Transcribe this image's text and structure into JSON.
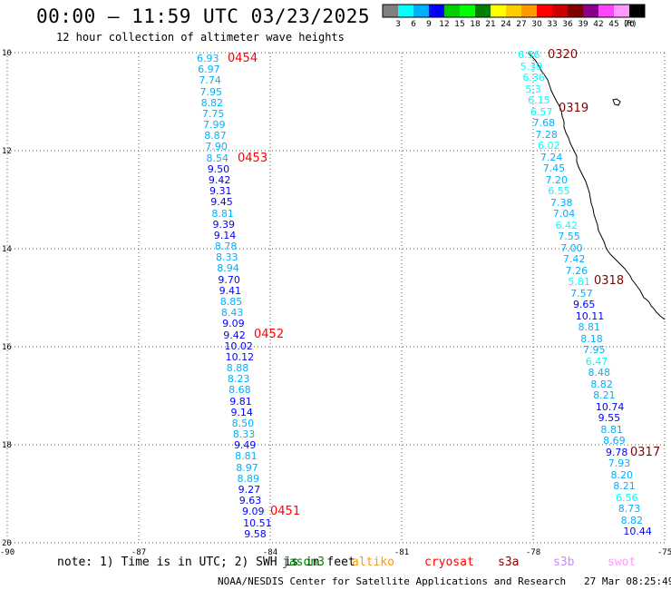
{
  "header": {
    "title": "00:00 – 11:59 UTC 03/23/2025",
    "subtitle": "12 hour collection of altimeter wave heights"
  },
  "legend": {
    "ticks": [
      "3",
      "6",
      "9",
      "12",
      "15",
      "18",
      "21",
      "24",
      "27",
      "30",
      "33",
      "36",
      "39",
      "42",
      "45",
      "70"
    ],
    "unit": "(ft)",
    "colors": [
      "#808080",
      "#00ffff",
      "#00b0ff",
      "#0000ff",
      "#00d000",
      "#00ff00",
      "#008000",
      "#ffff00",
      "#ffcc00",
      "#ff9900",
      "#ff0000",
      "#cc0000",
      "#800000",
      "#8b008b",
      "#ff44ff",
      "#ff99ff",
      "#000000"
    ]
  },
  "axes": {
    "lon_labels": [
      "-90",
      "-87",
      "-84",
      "-81",
      "-78",
      "-75"
    ],
    "lat_labels": [
      "10",
      "12",
      "14",
      "16",
      "18",
      "20"
    ],
    "lon_range": [
      -90,
      -75
    ],
    "lat_range": [
      10,
      20
    ]
  },
  "tracks": [
    {
      "points": [
        {
          "v": "6.93",
          "c": "#00b0ff"
        },
        {
          "v": "6.97",
          "c": "#00b0ff"
        },
        {
          "v": "7.74",
          "c": "#00b0ff"
        },
        {
          "v": "7.95",
          "c": "#00b0ff"
        },
        {
          "v": "8.82",
          "c": "#00b0ff"
        },
        {
          "v": "7.75",
          "c": "#00b0ff"
        },
        {
          "v": "7.99",
          "c": "#00b0ff"
        },
        {
          "v": "8.87",
          "c": "#00b0ff"
        },
        {
          "v": "7.90",
          "c": "#00b0ff"
        },
        {
          "v": "8.54",
          "c": "#00b0ff"
        },
        {
          "v": "9.50",
          "c": "#0000ff"
        },
        {
          "v": "9.42",
          "c": "#0000ff"
        },
        {
          "v": "9.31",
          "c": "#0000ff"
        },
        {
          "v": "9.45",
          "c": "#0000ff"
        },
        {
          "v": "8.81",
          "c": "#00b0ff"
        },
        {
          "v": "9.39",
          "c": "#0000ff"
        },
        {
          "v": "9.14",
          "c": "#0000ff"
        },
        {
          "v": "8.78",
          "c": "#00b0ff"
        },
        {
          "v": "8.33",
          "c": "#00b0ff"
        },
        {
          "v": "8.94",
          "c": "#00b0ff"
        },
        {
          "v": "9.70",
          "c": "#0000ff"
        },
        {
          "v": "9.41",
          "c": "#0000ff"
        },
        {
          "v": "8.85",
          "c": "#00b0ff"
        },
        {
          "v": "8.43",
          "c": "#00b0ff"
        },
        {
          "v": "9.09",
          "c": "#0000ff"
        },
        {
          "v": "9.42",
          "c": "#0000ff"
        },
        {
          "v": "10.02",
          "c": "#0000ff"
        },
        {
          "v": "10.12",
          "c": "#0000ff"
        },
        {
          "v": "8.88",
          "c": "#00b0ff"
        },
        {
          "v": "8.23",
          "c": "#00b0ff"
        },
        {
          "v": "8.68",
          "c": "#00b0ff"
        },
        {
          "v": "9.81",
          "c": "#0000ff"
        },
        {
          "v": "9.14",
          "c": "#0000ff"
        },
        {
          "v": "8.50",
          "c": "#00b0ff"
        },
        {
          "v": "8.33",
          "c": "#00b0ff"
        },
        {
          "v": "9.49",
          "c": "#0000ff"
        },
        {
          "v": "8.81",
          "c": "#00b0ff"
        },
        {
          "v": "8.97",
          "c": "#00b0ff"
        },
        {
          "v": "8.89",
          "c": "#00b0ff"
        },
        {
          "v": "9.27",
          "c": "#0000ff"
        },
        {
          "v": "9.63",
          "c": "#0000ff"
        },
        {
          "v": "9.09",
          "c": "#0000ff"
        },
        {
          "v": "10.51",
          "c": "#0000ff"
        },
        {
          "v": "9.58",
          "c": "#0000ff"
        }
      ]
    },
    {
      "points": [
        {
          "v": "6.56",
          "c": "#00ffff"
        },
        {
          "v": "5.39",
          "c": "#00ffff"
        },
        {
          "v": "6.36",
          "c": "#00ffff"
        },
        {
          "v": "5.3",
          "c": "#00ffff"
        },
        {
          "v": "6.15",
          "c": "#00ffff"
        },
        {
          "v": "6.57",
          "c": "#00ffff"
        },
        {
          "v": "7.68",
          "c": "#00b0ff"
        },
        {
          "v": "7.28",
          "c": "#00b0ff"
        },
        {
          "v": "6.02",
          "c": "#00ffff"
        },
        {
          "v": "7.24",
          "c": "#00b0ff"
        },
        {
          "v": "7.45",
          "c": "#00b0ff"
        },
        {
          "v": "7.20",
          "c": "#00b0ff"
        },
        {
          "v": "6.55",
          "c": "#00ffff"
        },
        {
          "v": "7.38",
          "c": "#00b0ff"
        },
        {
          "v": "7.04",
          "c": "#00b0ff"
        },
        {
          "v": "6.42",
          "c": "#00ffff"
        },
        {
          "v": "7.55",
          "c": "#00b0ff"
        },
        {
          "v": "7.00",
          "c": "#00b0ff"
        },
        {
          "v": "7.42",
          "c": "#00b0ff"
        },
        {
          "v": "7.26",
          "c": "#00b0ff"
        },
        {
          "v": "5.81",
          "c": "#00ffff"
        },
        {
          "v": "7.57",
          "c": "#00b0ff"
        },
        {
          "v": "9.65",
          "c": "#0000ff"
        },
        {
          "v": "10.11",
          "c": "#0000ff"
        },
        {
          "v": "8.81",
          "c": "#00b0ff"
        },
        {
          "v": "8.18",
          "c": "#00b0ff"
        },
        {
          "v": "7.95",
          "c": "#00b0ff"
        },
        {
          "v": "6.47",
          "c": "#00ffff"
        },
        {
          "v": "8.48",
          "c": "#00b0ff"
        },
        {
          "v": "8.82",
          "c": "#00b0ff"
        },
        {
          "v": "8.21",
          "c": "#00b0ff"
        },
        {
          "v": "10.74",
          "c": "#0000ff"
        },
        {
          "v": "9.55",
          "c": "#0000ff"
        },
        {
          "v": "8.81",
          "c": "#00b0ff"
        },
        {
          "v": "8.69",
          "c": "#00b0ff"
        },
        {
          "v": "9.78",
          "c": "#0000ff"
        },
        {
          "v": "7.93",
          "c": "#00b0ff"
        },
        {
          "v": "8.20",
          "c": "#00b0ff"
        },
        {
          "v": "8.21",
          "c": "#00b0ff"
        },
        {
          "v": "6.56",
          "c": "#00ffff"
        },
        {
          "v": "8.73",
          "c": "#00b0ff"
        },
        {
          "v": "8.82",
          "c": "#00b0ff"
        },
        {
          "v": "10.44",
          "c": "#0000ff"
        }
      ]
    }
  ],
  "time_labels": [
    {
      "text": "0454",
      "color": "#ff0000"
    },
    {
      "text": "0453",
      "color": "#ff0000"
    },
    {
      "text": "0452",
      "color": "#ff0000"
    },
    {
      "text": "0451",
      "color": "#ff0000"
    },
    {
      "text": "0320",
      "color": "#800000"
    },
    {
      "text": "0319",
      "color": "#800000"
    },
    {
      "text": "0318",
      "color": "#800000"
    },
    {
      "text": "0317",
      "color": "#800000"
    }
  ],
  "note": "note: 1) Time is in UTC; 2) SWH is in feet",
  "satellites": [
    {
      "name": "jason3",
      "color": "#008000"
    },
    {
      "name": "altiko",
      "color": "#ff9900"
    },
    {
      "name": "cryosat",
      "color": "#ff0000"
    },
    {
      "name": "s3a",
      "color": "#800000"
    },
    {
      "name": "s3b",
      "color": "#cc88ff"
    },
    {
      "name": "swot",
      "color": "#ff99ff"
    }
  ],
  "footer": {
    "credit": "NOAA/NESDIS Center for Satellite Applications and Research",
    "timestamp": "27 Mar 08:25:49 UTC 2025"
  }
}
